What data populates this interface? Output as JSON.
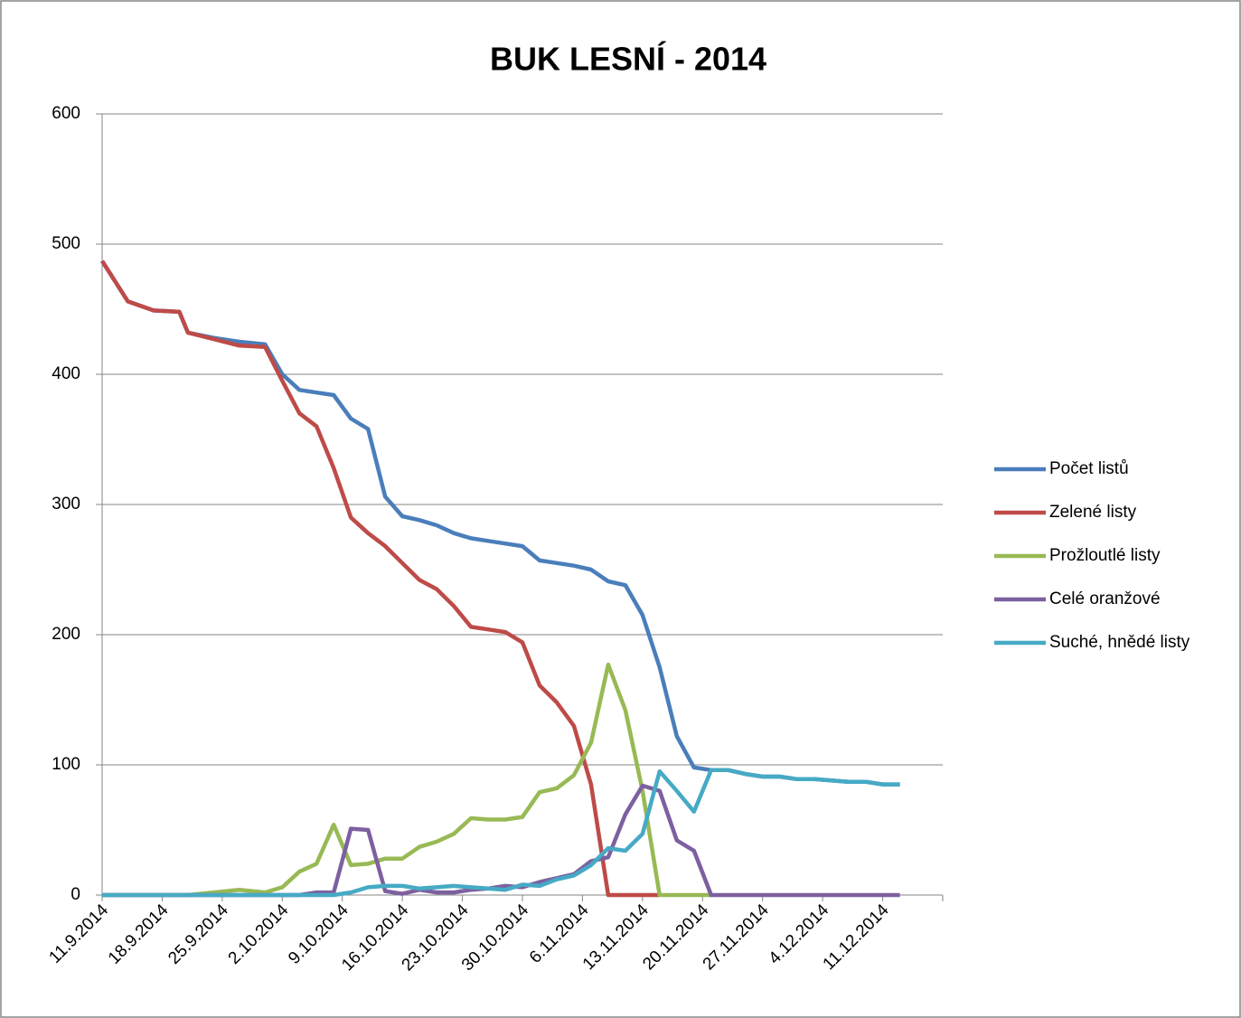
{
  "chart_data": {
    "type": "line",
    "title": "BUK LESNÍ - 2014",
    "x": [
      "11.9.2014",
      "14.9.2014",
      "17.9.2014",
      "20.9.2014",
      "21.9.2014",
      "24.9.2014",
      "27.9.2014",
      "30.9.2014",
      "2.10.2014",
      "4.10.2014",
      "6.10.2014",
      "8.10.2014",
      "10.10.2014",
      "12.10.2014",
      "14.10.2014",
      "16.10.2014",
      "18.10.2014",
      "20.10.2014",
      "22.10.2014",
      "24.10.2014",
      "26.10.2014",
      "28.10.2014",
      "30.10.2014",
      "1.11.2014",
      "3.11.2014",
      "5.11.2014",
      "7.11.2014",
      "9.11.2014",
      "11.11.2014",
      "13.11.2014",
      "15.11.2014",
      "17.11.2014",
      "19.11.2014",
      "21.11.2014",
      "23.11.2014",
      "25.11.2014",
      "27.11.2014",
      "29.11.2014",
      "1.12.2014",
      "3.12.2014",
      "5.12.2014",
      "7.12.2014",
      "9.12.2014",
      "11.12.2014",
      "13.12.2014"
    ],
    "series": [
      {
        "name": "Počet listů",
        "color": "#4a7ebb",
        "values": [
          487,
          456,
          449,
          448,
          432,
          428,
          425,
          423,
          400,
          388,
          386,
          384,
          366,
          358,
          306,
          291,
          288,
          284,
          278,
          274,
          272,
          270,
          268,
          257,
          255,
          253,
          250,
          241,
          238,
          215,
          175,
          122,
          98,
          96,
          96,
          93,
          91,
          91,
          89,
          89,
          88,
          87,
          87,
          85,
          85
        ]
      },
      {
        "name": "Zelené listy",
        "color": "#be4b48",
        "values": [
          487,
          456,
          449,
          448,
          432,
          427,
          422,
          421,
          395,
          370,
          360,
          328,
          290,
          278,
          268,
          255,
          242,
          235,
          222,
          206,
          204,
          202,
          194,
          161,
          148,
          130,
          85,
          0,
          0,
          0,
          0,
          null,
          null,
          null,
          null,
          null,
          null,
          null,
          null,
          null,
          null,
          null,
          null,
          null,
          null
        ]
      },
      {
        "name": "Prožloutlé  listy",
        "color": "#98b954",
        "values": [
          0,
          0,
          0,
          0,
          0,
          2,
          4,
          2,
          6,
          18,
          24,
          54,
          23,
          24,
          28,
          28,
          37,
          41,
          47,
          59,
          58,
          58,
          60,
          79,
          82,
          92,
          117,
          177,
          142,
          80,
          0,
          0,
          0,
          0,
          null,
          null,
          null,
          null,
          null,
          null,
          null,
          null,
          null,
          null,
          null
        ]
      },
      {
        "name": "Celé oranžové",
        "color": "#7d60a0",
        "values": [
          0,
          0,
          0,
          0,
          0,
          0,
          0,
          0,
          0,
          0,
          2,
          2,
          51,
          50,
          3,
          1,
          4,
          2,
          2,
          4,
          5,
          7,
          6,
          10,
          13,
          16,
          26,
          29,
          62,
          84,
          80,
          42,
          34,
          0,
          0,
          0,
          0,
          0,
          0,
          0,
          0,
          0,
          0,
          0,
          0
        ]
      },
      {
        "name": "Suché, hnědé listy",
        "color": "#46aac5",
        "values": [
          0,
          0,
          0,
          0,
          0,
          0,
          0,
          0,
          0,
          0,
          0,
          0,
          2,
          6,
          7,
          7,
          5,
          6,
          7,
          6,
          5,
          4,
          8,
          7,
          12,
          15,
          23,
          36,
          34,
          47,
          95,
          80,
          64,
          96,
          96,
          93,
          91,
          91,
          89,
          89,
          88,
          87,
          87,
          85,
          85
        ]
      }
    ],
    "xlim": [
      "11.9.2014",
      "18.12.2014"
    ],
    "xticks": [
      "11.9.2014",
      "18.9.2014",
      "25.9.2014",
      "2.10.2014",
      "9.10.2014",
      "16.10.2014",
      "23.10.2014",
      "30.10.2014",
      "6.11.2014",
      "13.11.2014",
      "20.11.2014",
      "27.11.2014",
      "4.12.2014",
      "11.12.2014"
    ],
    "ylim": [
      0,
      600
    ],
    "yticks": [
      0,
      100,
      200,
      300,
      400,
      500,
      600
    ],
    "grid": true,
    "legend": "right"
  }
}
